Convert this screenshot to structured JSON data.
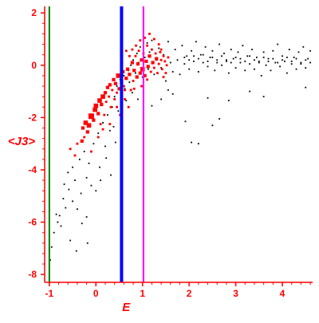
{
  "chart_data": {
    "type": "scatter",
    "title": "",
    "xlabel": "E",
    "ylabel": "<J3>",
    "xlim": [
      -1.1,
      4.65
    ],
    "ylim": [
      -8.3,
      2.25
    ],
    "xticks": [
      -1,
      0,
      1,
      2,
      3,
      4
    ],
    "xtick_labels": [
      "-1",
      "0",
      "1",
      "2",
      "3",
      "4"
    ],
    "yticks": [
      2,
      0,
      -2,
      -4,
      -6,
      -8
    ],
    "ytick_labels": [
      "2",
      "0",
      "-2",
      "-4",
      "-6",
      "-8"
    ],
    "grid": false,
    "legend": "none",
    "colors": {
      "axis": "#ff0000",
      "label": "#ff0000",
      "black_points": "#000000",
      "red_points": "#ff0000",
      "vline_green": "#008000",
      "vline_blue": "#0000ff",
      "vline_magenta": "#ff00ff"
    },
    "vertical_lines": [
      {
        "x": -1.0,
        "color": "#008000",
        "width": "thin"
      },
      {
        "x": 0.55,
        "color": "#0000ff",
        "width": "thick"
      },
      {
        "x": 1.02,
        "color": "#ff00ff",
        "width": "thin"
      }
    ],
    "series": [
      {
        "color": "#000000",
        "marker": "dot",
        "points": [
          [
            -1.0,
            -7.0
          ],
          [
            -0.98,
            -7.45
          ],
          [
            -0.95,
            -6.95
          ],
          [
            -0.9,
            -6.4
          ],
          [
            -0.85,
            -5.7
          ],
          [
            -0.82,
            -6.0
          ],
          [
            -0.78,
            -5.75
          ],
          [
            -0.75,
            -6.15
          ],
          [
            -0.7,
            -5.1
          ],
          [
            -0.68,
            -4.55
          ],
          [
            -0.65,
            -5.45
          ],
          [
            -0.6,
            -4.1
          ],
          [
            -0.58,
            -4.75
          ],
          [
            -0.55,
            -6.7
          ],
          [
            -0.5,
            -3.9
          ],
          [
            -0.5,
            -5.2
          ],
          [
            -0.45,
            -4.4
          ],
          [
            -0.42,
            -7.1
          ],
          [
            -0.4,
            -5.5
          ],
          [
            -0.35,
            -3.6
          ],
          [
            -0.32,
            -4.9
          ],
          [
            -0.3,
            -6.05
          ],
          [
            -0.25,
            -3.3
          ],
          [
            -0.2,
            -4.3
          ],
          [
            -0.2,
            -5.8
          ],
          [
            -0.18,
            -6.8
          ],
          [
            -0.15,
            -3.75
          ],
          [
            -0.1,
            -4.6
          ],
          [
            -0.05,
            -3.0
          ],
          [
            0.0,
            -4.8
          ],
          [
            0.05,
            -2.6
          ],
          [
            0.08,
            -3.9
          ],
          [
            0.1,
            -4.4
          ],
          [
            0.15,
            -2.2
          ],
          [
            0.2,
            -3.1
          ],
          [
            0.22,
            -3.55
          ],
          [
            0.25,
            -1.9
          ],
          [
            0.3,
            -2.5
          ],
          [
            0.32,
            -4.2
          ],
          [
            0.35,
            -1.6
          ],
          [
            0.38,
            -2.35
          ],
          [
            0.4,
            -1.2
          ],
          [
            0.42,
            -2.95
          ],
          [
            0.45,
            -0.8
          ],
          [
            0.48,
            -1.75
          ],
          [
            0.52,
            -0.55
          ],
          [
            0.55,
            -2.05
          ],
          [
            0.6,
            -0.4
          ],
          [
            0.62,
            -0.9
          ],
          [
            0.65,
            -1.35
          ],
          [
            0.7,
            -0.2
          ],
          [
            0.72,
            -0.65
          ],
          [
            0.75,
            0.0
          ],
          [
            0.78,
            -1.05
          ],
          [
            0.8,
            0.2
          ],
          [
            0.85,
            -0.3
          ],
          [
            0.88,
            0.45
          ],
          [
            0.9,
            -1.3
          ],
          [
            0.92,
            0.1
          ],
          [
            0.95,
            0.7
          ],
          [
            1.0,
            -0.45
          ],
          [
            1.05,
            0.3
          ],
          [
            1.1,
            0.85
          ],
          [
            1.12,
            -0.15
          ],
          [
            1.15,
            0.5
          ],
          [
            1.2,
            0.95
          ],
          [
            1.25,
            -0.35
          ],
          [
            1.3,
            0.2
          ],
          [
            1.35,
            0.65
          ],
          [
            1.4,
            -0.1
          ],
          [
            1.45,
            0.4
          ],
          [
            1.5,
            -0.6
          ],
          [
            1.55,
            0.9
          ],
          [
            1.6,
            0.1
          ],
          [
            1.65,
            -0.25
          ],
          [
            1.7,
            0.6
          ],
          [
            1.75,
            0.2
          ],
          [
            1.8,
            -0.35
          ],
          [
            1.85,
            0.75
          ],
          [
            1.9,
            0.05
          ],
          [
            1.95,
            0.35
          ],
          [
            2.0,
            -0.15
          ],
          [
            2.05,
            0.55
          ],
          [
            2.1,
            0.15
          ],
          [
            2.15,
            0.9
          ],
          [
            2.2,
            -0.25
          ],
          [
            2.25,
            0.4
          ],
          [
            2.3,
            0.1
          ],
          [
            2.35,
            0.7
          ],
          [
            2.4,
            -0.05
          ],
          [
            2.45,
            0.3
          ],
          [
            2.5,
            0.55
          ],
          [
            2.55,
            -0.2
          ],
          [
            2.6,
            0.2
          ],
          [
            2.65,
            0.8
          ],
          [
            2.7,
            0.0
          ],
          [
            2.75,
            0.45
          ],
          [
            2.8,
            0.15
          ],
          [
            2.85,
            -0.3
          ],
          [
            2.9,
            0.6
          ],
          [
            2.95,
            0.25
          ],
          [
            3.0,
            -0.1
          ],
          [
            3.05,
            0.5
          ],
          [
            3.1,
            0.1
          ],
          [
            3.15,
            0.75
          ],
          [
            3.2,
            -0.2
          ],
          [
            3.25,
            0.35
          ],
          [
            3.3,
            0.05
          ],
          [
            3.35,
            0.6
          ],
          [
            3.4,
            -0.15
          ],
          [
            3.45,
            0.3
          ],
          [
            3.5,
            0.15
          ],
          [
            3.55,
            -0.4
          ],
          [
            3.6,
            0.5
          ],
          [
            3.65,
            0.0
          ],
          [
            3.7,
            0.25
          ],
          [
            3.75,
            -0.2
          ],
          [
            3.8,
            0.55
          ],
          [
            3.85,
            0.1
          ],
          [
            3.9,
            0.8
          ],
          [
            3.95,
            -0.05
          ],
          [
            4.0,
            0.35
          ],
          [
            4.05,
            0.15
          ],
          [
            4.1,
            -0.3
          ],
          [
            4.15,
            0.6
          ],
          [
            4.2,
            0.05
          ],
          [
            4.25,
            0.3
          ],
          [
            4.3,
            -0.15
          ],
          [
            4.35,
            0.5
          ],
          [
            4.4,
            0.1
          ],
          [
            4.45,
            0.7
          ],
          [
            4.5,
            -0.1
          ],
          [
            4.55,
            0.25
          ],
          [
            4.6,
            0.55
          ],
          [
            1.9,
            0.3
          ],
          [
            2.0,
            0.2
          ],
          [
            2.1,
            0.35
          ],
          [
            2.2,
            0.25
          ],
          [
            2.3,
            0.4
          ],
          [
            2.4,
            0.15
          ],
          [
            2.5,
            0.3
          ],
          [
            2.6,
            0.1
          ],
          [
            2.7,
            0.35
          ],
          [
            2.8,
            0.2
          ],
          [
            2.9,
            0.1
          ],
          [
            3.0,
            0.3
          ],
          [
            3.1,
            0.25
          ],
          [
            3.2,
            0.15
          ],
          [
            3.3,
            0.35
          ],
          [
            3.4,
            0.2
          ],
          [
            3.5,
            0.1
          ],
          [
            3.6,
            0.3
          ],
          [
            3.7,
            0.15
          ],
          [
            3.8,
            0.25
          ],
          [
            3.9,
            0.1
          ],
          [
            4.0,
            0.2
          ],
          [
            4.1,
            0.3
          ],
          [
            4.2,
            0.15
          ],
          [
            4.3,
            0.25
          ],
          [
            4.4,
            0.05
          ],
          [
            4.5,
            0.2
          ],
          [
            4.6,
            0.1
          ],
          [
            1.92,
            -2.15
          ],
          [
            2.05,
            -2.95
          ],
          [
            2.2,
            -3.0
          ],
          [
            2.4,
            -1.25
          ],
          [
            2.5,
            -2.3
          ],
          [
            2.65,
            -2.05
          ],
          [
            2.85,
            -1.35
          ],
          [
            3.3,
            -1.0
          ],
          [
            3.6,
            -1.2
          ],
          [
            4.5,
            -0.85
          ],
          [
            1.4,
            -1.3
          ],
          [
            1.55,
            -0.95
          ],
          [
            1.2,
            -1.55
          ],
          [
            1.65,
            -1.1
          ]
        ]
      },
      {
        "color": "#ff0000",
        "marker": "square",
        "points": [
          [
            -0.55,
            -3.2,
            2
          ],
          [
            -0.45,
            -3.45,
            2
          ],
          [
            -0.4,
            -3.0,
            2
          ],
          [
            -0.3,
            -2.9,
            3
          ],
          [
            -0.28,
            -2.4,
            3
          ],
          [
            -0.25,
            -2.75,
            2
          ],
          [
            -0.22,
            -2.2,
            4
          ],
          [
            -0.18,
            -2.55,
            3
          ],
          [
            -0.15,
            -2.3,
            4
          ],
          [
            -0.1,
            -1.95,
            5
          ],
          [
            -0.05,
            -2.1,
            3
          ],
          [
            -0.02,
            -1.7,
            4
          ],
          [
            0.0,
            -1.55,
            4
          ],
          [
            0.05,
            -1.85,
            3
          ],
          [
            0.08,
            -1.35,
            4
          ],
          [
            0.1,
            -2.25,
            2
          ],
          [
            0.12,
            -1.5,
            3
          ],
          [
            0.15,
            -1.2,
            4
          ],
          [
            0.18,
            -1.9,
            2
          ],
          [
            0.2,
            -1.05,
            3
          ],
          [
            0.22,
            -1.4,
            2
          ],
          [
            0.25,
            -0.85,
            3
          ],
          [
            0.28,
            -1.2,
            2
          ],
          [
            0.3,
            -0.75,
            3
          ],
          [
            0.32,
            -1.6,
            2
          ],
          [
            0.35,
            -0.95,
            2
          ],
          [
            0.38,
            -0.55,
            3
          ],
          [
            0.4,
            -1.3,
            2
          ],
          [
            0.42,
            -0.7,
            3
          ],
          [
            0.45,
            -1.05,
            2
          ],
          [
            0.48,
            -0.4,
            4
          ],
          [
            0.5,
            -0.9,
            3
          ],
          [
            0.52,
            -1.9,
            2
          ],
          [
            0.55,
            -0.65,
            3
          ],
          [
            0.58,
            -0.25,
            3
          ],
          [
            0.6,
            -0.8,
            2
          ],
          [
            0.62,
            -1.3,
            2
          ],
          [
            0.65,
            -0.5,
            3
          ],
          [
            0.68,
            -0.15,
            3
          ],
          [
            0.7,
            -1.6,
            2
          ],
          [
            0.72,
            -0.35,
            3
          ],
          [
            0.75,
            -0.95,
            2
          ],
          [
            0.78,
            0.1,
            3
          ],
          [
            0.8,
            -0.6,
            2
          ],
          [
            0.82,
            -0.2,
            3
          ],
          [
            0.85,
            0.35,
            2
          ],
          [
            0.88,
            -0.45,
            3
          ],
          [
            0.9,
            0.05,
            3
          ],
          [
            0.92,
            0.55,
            2
          ],
          [
            0.95,
            -0.3,
            3
          ],
          [
            0.98,
            0.2,
            3
          ],
          [
            1.0,
            -0.15,
            4
          ],
          [
            1.02,
            0.45,
            2
          ],
          [
            1.05,
            -0.4,
            3
          ],
          [
            1.08,
            0.15,
            3
          ],
          [
            1.1,
            0.75,
            2
          ],
          [
            1.12,
            -0.05,
            3
          ],
          [
            1.15,
            0.35,
            3
          ],
          [
            1.18,
            -0.25,
            2
          ],
          [
            1.2,
            0.6,
            2
          ],
          [
            1.22,
            0.1,
            3
          ],
          [
            1.25,
            -0.1,
            2
          ],
          [
            1.28,
            0.45,
            2
          ],
          [
            1.3,
            0.25,
            3
          ],
          [
            1.32,
            -0.3,
            2
          ],
          [
            1.35,
            0.05,
            2
          ],
          [
            1.38,
            0.5,
            2
          ],
          [
            1.4,
            0.2,
            2
          ],
          [
            1.42,
            -0.15,
            2
          ],
          [
            1.45,
            0.35,
            2
          ],
          [
            1.48,
            0.15,
            2
          ],
          [
            1.5,
            -0.3,
            2
          ],
          [
            1.52,
            0.0,
            2
          ],
          [
            0.72,
            0.35,
            2
          ],
          [
            0.65,
            0.55,
            2
          ],
          [
            1.55,
            0.3,
            2
          ],
          [
            0.86,
            0.75,
            2
          ],
          [
            0.95,
            0.95,
            2
          ],
          [
            1.05,
            1.05,
            2
          ],
          [
            1.15,
            1.2,
            2
          ],
          [
            1.25,
            1.0,
            2
          ],
          [
            1.35,
            0.8,
            2
          ],
          [
            0.78,
            0.6,
            2
          ],
          [
            1.4,
            0.6,
            2
          ],
          [
            0.56,
            0.1,
            2
          ],
          [
            0.98,
            -0.8,
            2
          ],
          [
            1.1,
            -0.55,
            2
          ],
          [
            1.45,
            -0.45,
            2
          ],
          [
            0.3,
            -2.25,
            2
          ],
          [
            0.15,
            -2.45,
            2
          ],
          [
            0.05,
            -2.75,
            2
          ],
          [
            -0.1,
            -3.3,
            2
          ],
          [
            0.45,
            -1.6,
            2
          ],
          [
            0.62,
            -0.95,
            2
          ],
          [
            0.82,
            -0.9,
            2
          ]
        ]
      }
    ]
  }
}
